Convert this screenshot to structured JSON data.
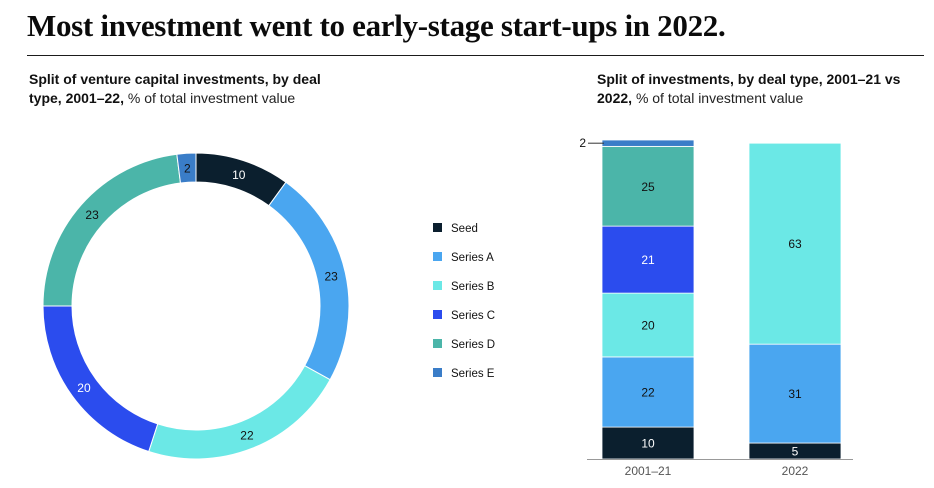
{
  "headline": "Most investment went to early-stage start-ups in 2022.",
  "left_subtitle": {
    "bold": "Split of venture capital investments, by deal type, 2001–22,",
    "unit": "% of total investment value"
  },
  "right_subtitle": {
    "bold": "Split of investments, by deal type, 2001–21 vs 2022,",
    "unit": "% of total investment value"
  },
  "colors": {
    "Seed": "#0b1f2e",
    "Series A": "#4aa6f0",
    "Series B": "#6be8e6",
    "Series C": "#2b4cee",
    "Series D": "#4bb5a9",
    "Series E": "#3a7dc8"
  },
  "chart_data": [
    {
      "type": "pie",
      "variant": "donut",
      "title": "Split of venture capital investments, by deal type, 2001–22",
      "unit": "% of total investment value",
      "categories": [
        "Seed",
        "Series A",
        "Series B",
        "Series C",
        "Series D",
        "Series E"
      ],
      "values": [
        10,
        23,
        22,
        20,
        23,
        2
      ],
      "legend": [
        "Seed",
        "Series A",
        "Series B",
        "Series C",
        "Series D",
        "Series E"
      ],
      "legend_position": "right"
    },
    {
      "type": "bar",
      "stacked": true,
      "title": "Split of investments, by deal type, 2001–21 vs 2022",
      "unit": "% of total investment value",
      "categories": [
        "2001–21",
        "2022"
      ],
      "series": [
        {
          "name": "Seed",
          "values": [
            10,
            5
          ]
        },
        {
          "name": "Series A",
          "values": [
            22,
            31
          ]
        },
        {
          "name": "Series B",
          "values": [
            20,
            63
          ]
        },
        {
          "name": "Series C",
          "values": [
            21,
            0
          ]
        },
        {
          "name": "Series D",
          "values": [
            25,
            0
          ]
        },
        {
          "name": "Series E",
          "values": [
            2,
            0
          ]
        }
      ],
      "ylim": [
        0,
        100
      ],
      "callout": {
        "series": "Series E",
        "category": "2001–21",
        "label": "2"
      }
    }
  ]
}
